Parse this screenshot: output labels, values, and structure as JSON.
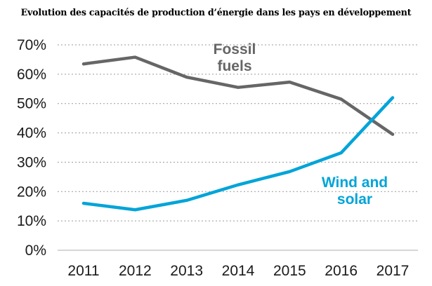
{
  "title": "Evolution des capacités de production d’énergie dans les pays en développement",
  "chart_data": {
    "type": "line",
    "x": [
      "2011",
      "2012",
      "2013",
      "2014",
      "2015",
      "2016",
      "2017"
    ],
    "ylim": [
      0,
      70
    ],
    "yticks": [
      "0%",
      "10%",
      "20%",
      "30%",
      "40%",
      "50%",
      "60%",
      "70%"
    ],
    "grid": true,
    "series": [
      {
        "name_lines": [
          "Fossil",
          "fuels"
        ],
        "color": "#666666",
        "values": [
          63.5,
          65.8,
          59,
          55.5,
          57.3,
          51.5,
          39.5
        ]
      },
      {
        "name_lines": [
          "Wind and",
          "solar"
        ],
        "color": "#00a4d8",
        "values": [
          16,
          13.8,
          17,
          22.3,
          26.8,
          33.2,
          52
        ]
      }
    ]
  }
}
